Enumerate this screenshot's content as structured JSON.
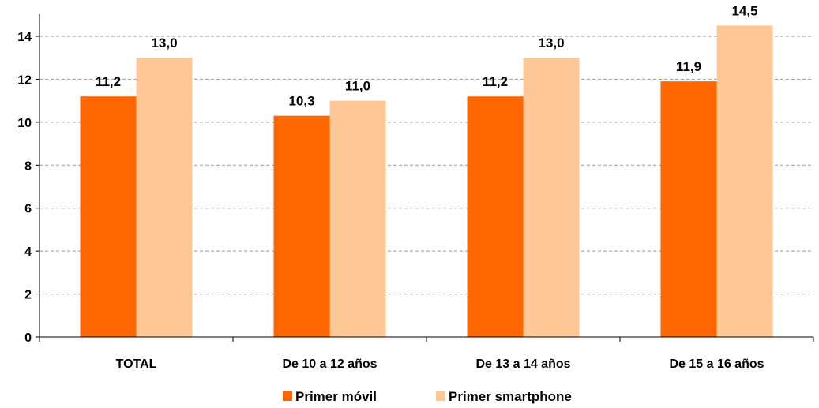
{
  "chart_data": {
    "type": "bar",
    "categories": [
      "TOTAL",
      "De 10 a 12 años",
      "De 13 a 14 años",
      "De 15 a 16 años"
    ],
    "series": [
      {
        "name": "Primer móvil",
        "values": [
          11.2,
          10.3,
          11.2,
          11.9
        ],
        "labels": [
          "11,2",
          "10,3",
          "11,2",
          "11,9"
        ],
        "color": "#FF6600"
      },
      {
        "name": "Primer smartphone",
        "values": [
          13.0,
          11.0,
          13.0,
          14.5
        ],
        "labels": [
          "13,0",
          "11,0",
          "13,0",
          "14,5"
        ],
        "color": "#FFC896"
      }
    ],
    "ylim": [
      0,
      14
    ],
    "yticks": [
      0,
      2,
      4,
      6,
      8,
      10,
      12,
      14
    ],
    "grid": true,
    "legend_position": "bottom"
  }
}
